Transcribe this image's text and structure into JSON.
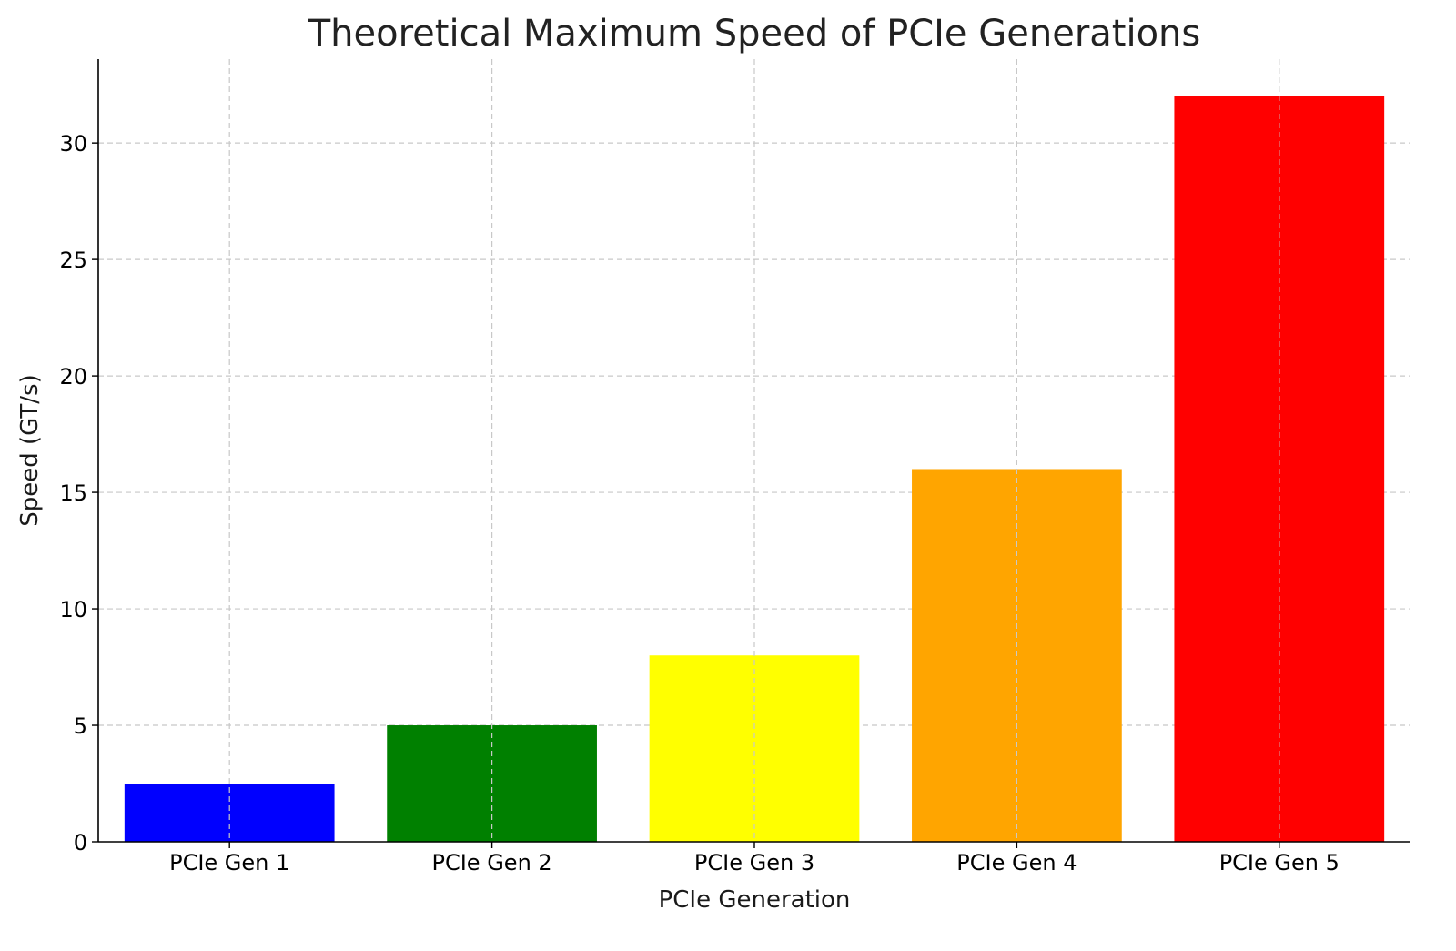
{
  "chart_data": {
    "type": "bar",
    "title": "Theoretical Maximum Speed of PCIe Generations",
    "xlabel": "PCIe Generation",
    "ylabel": "Speed (GT/s)",
    "categories": [
      "PCIe Gen 1",
      "PCIe Gen 2",
      "PCIe Gen 3",
      "PCIe Gen 4",
      "PCIe Gen 5"
    ],
    "values": [
      2.5,
      5,
      8,
      16,
      32
    ],
    "colors": [
      "#0000ff",
      "#008000",
      "#ffff00",
      "#ffa500",
      "#ff0000"
    ],
    "ylim": [
      0,
      33.6
    ],
    "yticks": [
      0,
      5,
      10,
      15,
      20,
      25,
      30
    ],
    "grid": true
  }
}
